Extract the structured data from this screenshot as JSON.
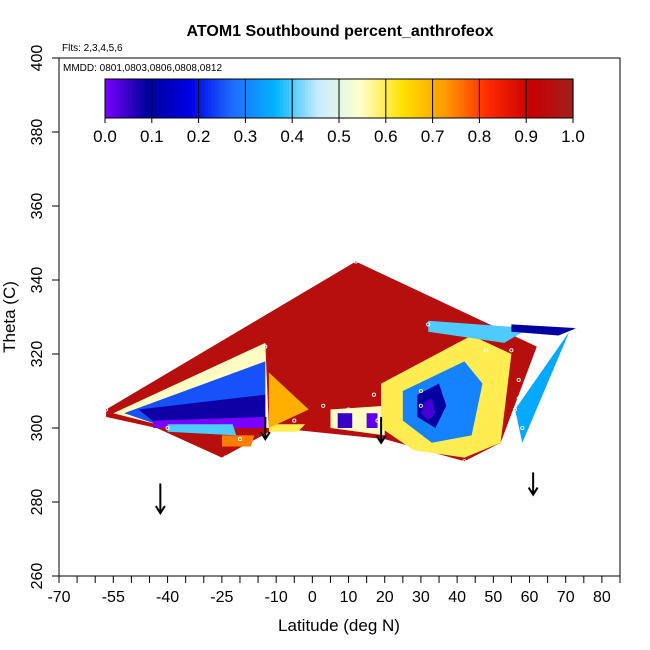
{
  "chart_data": {
    "type": "heatmap",
    "title": "ATOM1 Southbound percent_anthrofeox",
    "flights_text": "Flts: 2,3,4,5,6",
    "dates_text": "MMDD: 0801,0803,0806,0808,0812",
    "xlabel": "Latitude (deg N)",
    "ylabel": "Theta (C)",
    "xlim": [
      -70,
      85
    ],
    "ylim": [
      260,
      400
    ],
    "x_ticks": [
      -70,
      -55,
      -40,
      -25,
      -10,
      0,
      10,
      20,
      30,
      40,
      50,
      60,
      70,
      80
    ],
    "x_tick_labels": [
      "-70",
      "-55",
      "-40",
      "-25",
      "-10",
      "0",
      "10",
      "20",
      "30",
      "40",
      "50",
      "60",
      "70",
      "80"
    ],
    "x_minor_ticks": [
      -65,
      -60,
      -50,
      -45,
      -35,
      -30,
      -20,
      -15,
      -5,
      5,
      15,
      25,
      35,
      45,
      55,
      65,
      75,
      85
    ],
    "y_ticks": [
      260,
      280,
      300,
      320,
      340,
      360,
      380,
      400
    ],
    "y_tick_labels": [
      "260",
      "280",
      "300",
      "320",
      "340",
      "360",
      "380",
      "400"
    ],
    "colorbar": {
      "range": [
        0,
        1
      ],
      "ticks": [
        0.0,
        0.1,
        0.2,
        0.3,
        0.4,
        0.5,
        0.6,
        0.7,
        0.8,
        0.9,
        1.0
      ],
      "tick_labels": [
        "0.0",
        "0.1",
        "0.2",
        "0.3",
        "0.4",
        "0.5",
        "0.6",
        "0.7",
        "0.8",
        "0.9",
        "1.0"
      ],
      "colors": [
        "#7a00ff",
        "#000099",
        "#0000e6",
        "#1e6cff",
        "#00b4ff",
        "#c6ecff",
        "#ffffcc",
        "#ffe100",
        "#ff9a00",
        "#ff2a00",
        "#c80000",
        "#a21f1f"
      ]
    },
    "regions": [
      {
        "value": 0.95,
        "polygon": [
          [
            -57,
            305
          ],
          [
            12,
            345
          ],
          [
            62,
            322
          ],
          [
            52,
            296
          ],
          [
            42,
            291
          ],
          [
            20,
            297
          ],
          [
            -10,
            300
          ],
          [
            -25,
            292
          ],
          [
            -43,
            300
          ],
          [
            -57,
            303
          ]
        ]
      },
      {
        "value": 0.55,
        "polygon": [
          [
            -55,
            304
          ],
          [
            -13,
            323
          ],
          [
            -12,
            300
          ],
          [
            -43,
            301
          ]
        ]
      },
      {
        "value": 0.25,
        "polygon": [
          [
            -52,
            304
          ],
          [
            -13,
            318
          ],
          [
            -13,
            301
          ],
          [
            -43,
            301
          ]
        ]
      },
      {
        "value": 0.08,
        "polygon": [
          [
            -48,
            305
          ],
          [
            -13,
            309
          ],
          [
            -13,
            301
          ],
          [
            -43,
            301
          ]
        ]
      },
      {
        "value": 0.0,
        "polygon": [
          [
            -44,
            302
          ],
          [
            -13,
            303
          ],
          [
            -13,
            300
          ],
          [
            -44,
            300
          ]
        ]
      },
      {
        "value": 0.4,
        "polygon": [
          [
            -40,
            301
          ],
          [
            -22,
            301
          ],
          [
            -21,
            298
          ],
          [
            -40,
            299
          ]
        ]
      },
      {
        "value": 0.75,
        "polygon": [
          [
            -25,
            298
          ],
          [
            -16,
            298
          ],
          [
            -17,
            295
          ],
          [
            -25,
            295
          ]
        ]
      },
      {
        "value": 0.6,
        "polygon": [
          [
            -12,
            301
          ],
          [
            -2,
            301
          ],
          [
            -4,
            299
          ],
          [
            -12,
            299
          ]
        ]
      },
      {
        "value": 0.7,
        "polygon": [
          [
            -12,
            315
          ],
          [
            -1,
            305
          ],
          [
            -12,
            300
          ]
        ]
      },
      {
        "value": 0.55,
        "polygon": [
          [
            5,
            305
          ],
          [
            20,
            306
          ],
          [
            20,
            298
          ],
          [
            5,
            300
          ]
        ]
      },
      {
        "value": 0.05,
        "polygon": [
          [
            7,
            304
          ],
          [
            11,
            304
          ],
          [
            11,
            300
          ],
          [
            7,
            300
          ]
        ]
      },
      {
        "value": 0.02,
        "polygon": [
          [
            15,
            304
          ],
          [
            18,
            304
          ],
          [
            18,
            300
          ],
          [
            15,
            300
          ]
        ]
      },
      {
        "value": 0.6,
        "polygon": [
          [
            19,
            312
          ],
          [
            44,
            325
          ],
          [
            55,
            320
          ],
          [
            52,
            296
          ],
          [
            42,
            292
          ],
          [
            28,
            294
          ],
          [
            19,
            300
          ]
        ]
      },
      {
        "value": 0.3,
        "polygon": [
          [
            25,
            310
          ],
          [
            42,
            318
          ],
          [
            47,
            312
          ],
          [
            44,
            298
          ],
          [
            33,
            296
          ],
          [
            25,
            302
          ]
        ]
      },
      {
        "value": 0.1,
        "polygon": [
          [
            29,
            309
          ],
          [
            35,
            312
          ],
          [
            37,
            306
          ],
          [
            34,
            300
          ],
          [
            29,
            303
          ]
        ]
      },
      {
        "value": 0.04,
        "polygon": [
          [
            31,
            307
          ],
          [
            33,
            308
          ],
          [
            34,
            304
          ],
          [
            32,
            302
          ],
          [
            30,
            304
          ]
        ]
      },
      {
        "value": 0.4,
        "polygon": [
          [
            32,
            329
          ],
          [
            60,
            327
          ],
          [
            53,
            323
          ],
          [
            32,
            326
          ]
        ]
      },
      {
        "value": 0.1,
        "polygon": [
          [
            55,
            328
          ],
          [
            73,
            327
          ],
          [
            68,
            325
          ],
          [
            55,
            326
          ]
        ]
      },
      {
        "value": 0.35,
        "polygon": [
          [
            56,
            305
          ],
          [
            71,
            326
          ],
          [
            58,
            296
          ]
        ]
      }
    ],
    "sample_points": [
      [
        12,
        345
      ],
      [
        -13,
        322
      ],
      [
        3,
        306
      ],
      [
        -5,
        302
      ],
      [
        -20,
        297
      ],
      [
        -40,
        300
      ],
      [
        -57,
        305
      ],
      [
        10,
        305
      ],
      [
        12,
        302
      ],
      [
        17,
        309
      ],
      [
        18,
        302
      ],
      [
        32,
        328
      ],
      [
        48,
        321
      ],
      [
        30,
        310
      ],
      [
        30,
        306
      ],
      [
        55,
        321
      ],
      [
        57,
        313
      ],
      [
        57,
        308
      ],
      [
        56,
        305
      ],
      [
        58,
        300
      ],
      [
        57,
        295
      ],
      [
        42,
        291
      ],
      [
        73,
        327
      ],
      [
        -24,
        292
      ]
    ],
    "arrows": [
      {
        "x": -42,
        "y_start": 285,
        "y_end": 277
      },
      {
        "x": -13,
        "y_start": 303,
        "y_end": 297
      },
      {
        "x": 19,
        "y_start": 303,
        "y_end": 296
      },
      {
        "x": 61,
        "y_start": 288,
        "y_end": 282
      }
    ]
  }
}
